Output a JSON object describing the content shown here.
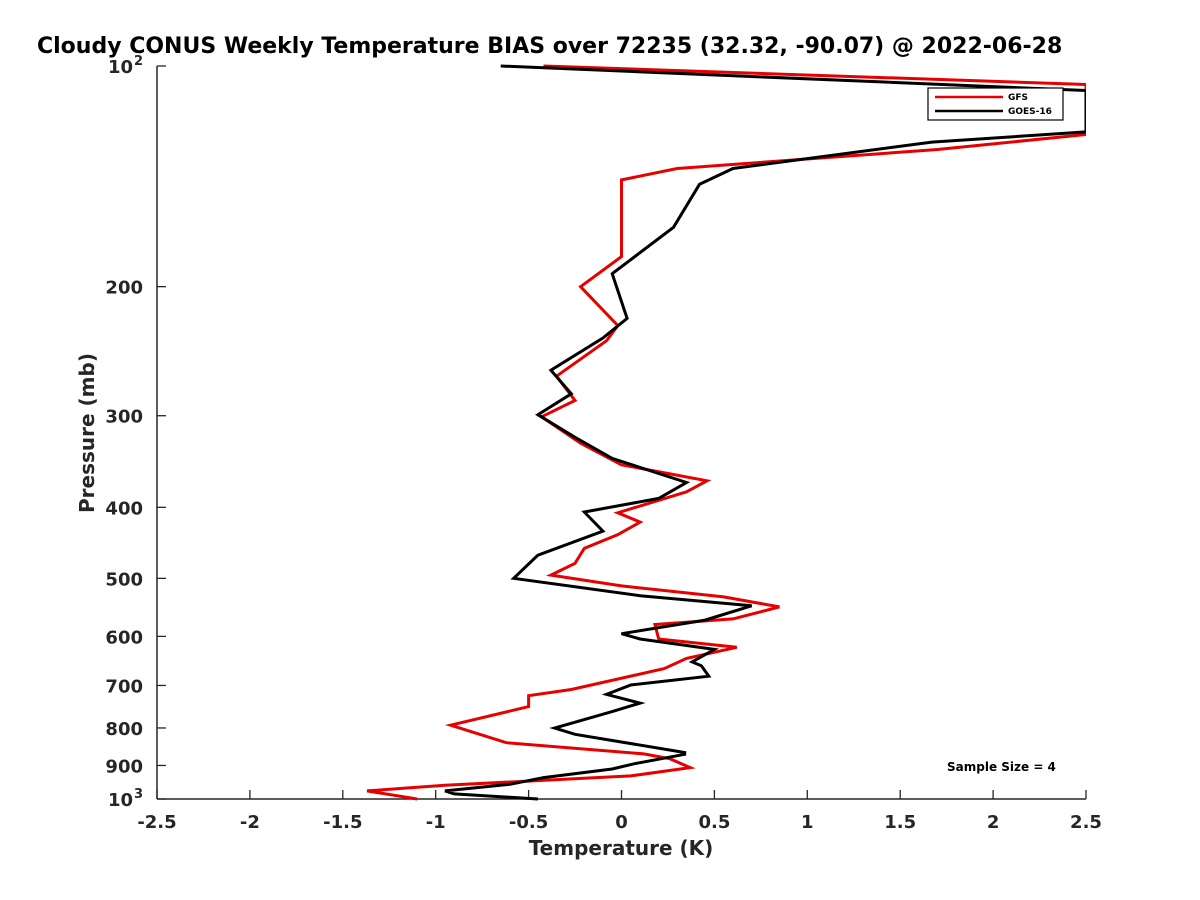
{
  "chart_data": {
    "type": "line",
    "title": "Cloudy CONUS Weekly Temperature BIAS over 72235 (32.32, -90.07) @ 2022-06-28",
    "xlabel": "Temperature (K)",
    "ylabel": "Pressure (mb)",
    "xlim": [
      -2.5,
      2.5
    ],
    "ylim": [
      100,
      1000
    ],
    "yscale": "log",
    "y_reversed": true,
    "x_ticks": [
      {
        "value": -2.5,
        "label": "-2.5"
      },
      {
        "value": -2,
        "label": "-2"
      },
      {
        "value": -1.5,
        "label": "-1.5"
      },
      {
        "value": -1,
        "label": "-1"
      },
      {
        "value": -0.5,
        "label": "-0.5"
      },
      {
        "value": 0,
        "label": "0"
      },
      {
        "value": 0.5,
        "label": "0.5"
      },
      {
        "value": 1,
        "label": "1"
      },
      {
        "value": 1.5,
        "label": "1.5"
      },
      {
        "value": 2,
        "label": "2"
      },
      {
        "value": 2.5,
        "label": "2.5"
      }
    ],
    "y_ticks": [
      {
        "value": 100,
        "base": "10",
        "exp": "2"
      },
      {
        "value": 200,
        "label": "200"
      },
      {
        "value": 300,
        "label": "300"
      },
      {
        "value": 400,
        "label": "400"
      },
      {
        "value": 500,
        "label": "500"
      },
      {
        "value": 600,
        "label": "600"
      },
      {
        "value": 700,
        "label": "700"
      },
      {
        "value": 800,
        "label": "800"
      },
      {
        "value": 900,
        "label": "900"
      },
      {
        "value": 1000,
        "base": "10",
        "exp": "3"
      }
    ],
    "legend": {
      "position": "top-right",
      "entries": [
        "GFS",
        "GOES-16"
      ]
    },
    "annotation": "Sample Size = 4",
    "series": [
      {
        "name": "GFS",
        "color": "#e60000",
        "points": [
          [
            -0.42,
            100
          ],
          [
            2.5,
            106
          ],
          [
            2.5,
            124
          ],
          [
            1.7,
            130
          ],
          [
            0.3,
            138
          ],
          [
            0.0,
            143
          ],
          [
            0.0,
            182
          ],
          [
            -0.22,
            200
          ],
          [
            -0.02,
            226
          ],
          [
            -0.08,
            237
          ],
          [
            -0.35,
            265
          ],
          [
            -0.25,
            286
          ],
          [
            -0.43,
            301
          ],
          [
            -0.22,
            327
          ],
          [
            0.0,
            350
          ],
          [
            0.46,
            368
          ],
          [
            0.35,
            381
          ],
          [
            -0.02,
            407
          ],
          [
            0.1,
            419
          ],
          [
            -0.02,
            436
          ],
          [
            -0.2,
            455
          ],
          [
            -0.25,
            477
          ],
          [
            -0.38,
            495
          ],
          [
            0.0,
            512
          ],
          [
            0.55,
            530
          ],
          [
            0.85,
            547
          ],
          [
            0.6,
            568
          ],
          [
            0.18,
            578
          ],
          [
            0.2,
            605
          ],
          [
            0.62,
            621
          ],
          [
            0.35,
            643
          ],
          [
            0.23,
            664
          ],
          [
            -0.27,
            709
          ],
          [
            -0.5,
            723
          ],
          [
            -0.5,
            748
          ],
          [
            -0.92,
            793
          ],
          [
            -0.62,
            838
          ],
          [
            0.12,
            868
          ],
          [
            0.26,
            881
          ],
          [
            0.37,
            906
          ],
          [
            0.05,
            930
          ],
          [
            -0.95,
            958
          ],
          [
            -1.37,
            975
          ],
          [
            -1.1,
            1000
          ]
        ]
      },
      {
        "name": "GOES-16",
        "color": "#000000",
        "points": [
          [
            -0.65,
            100
          ],
          [
            2.5,
            108
          ],
          [
            2.5,
            123
          ],
          [
            1.67,
            127
          ],
          [
            0.6,
            138
          ],
          [
            0.42,
            145
          ],
          [
            0.28,
            166
          ],
          [
            -0.05,
            192
          ],
          [
            0.03,
            221
          ],
          [
            -0.1,
            235
          ],
          [
            -0.38,
            260
          ],
          [
            -0.27,
            280
          ],
          [
            -0.45,
            299
          ],
          [
            -0.25,
            321
          ],
          [
            -0.05,
            343
          ],
          [
            0.35,
            370
          ],
          [
            0.2,
            389
          ],
          [
            -0.2,
            406
          ],
          [
            -0.1,
            431
          ],
          [
            -0.45,
            465
          ],
          [
            -0.5,
            478
          ],
          [
            -0.58,
            500
          ],
          [
            0.1,
            528
          ],
          [
            0.7,
            545
          ],
          [
            0.45,
            570
          ],
          [
            0.0,
            595
          ],
          [
            0.1,
            605
          ],
          [
            0.5,
            625
          ],
          [
            0.38,
            650
          ],
          [
            0.43,
            658
          ],
          [
            0.47,
            680
          ],
          [
            0.05,
            699
          ],
          [
            -0.08,
            720
          ],
          [
            0.1,
            740
          ],
          [
            -0.05,
            760
          ],
          [
            -0.36,
            800
          ],
          [
            -0.25,
            816
          ],
          [
            0.34,
            864
          ],
          [
            0.34,
            869
          ],
          [
            0.07,
            895
          ],
          [
            -0.05,
            910
          ],
          [
            -0.42,
            935
          ],
          [
            -0.6,
            955
          ],
          [
            -0.95,
            975
          ],
          [
            -0.9,
            984
          ],
          [
            -0.45,
            1000
          ]
        ]
      }
    ]
  }
}
